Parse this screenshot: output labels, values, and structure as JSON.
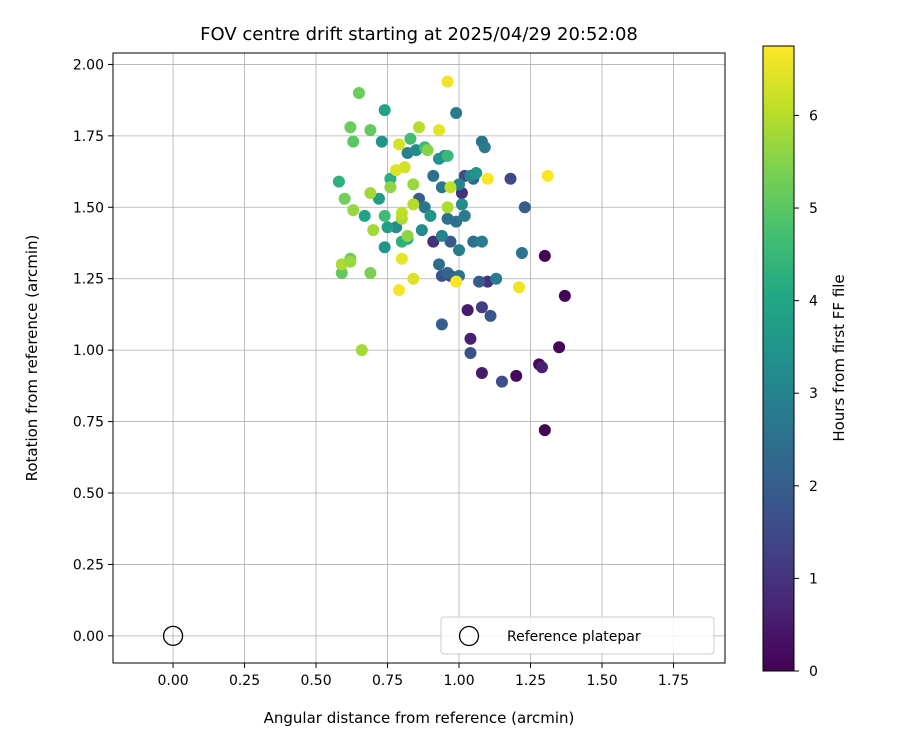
{
  "chart_data": {
    "type": "scatter",
    "title": "FOV centre drift starting at 2025/04/29 20:52:08",
    "xlabel": "Angular distance from reference (arcmin)",
    "ylabel": "Rotation from reference (arcmin)",
    "xlim": [
      -0.21,
      1.93
    ],
    "ylim": [
      -0.095,
      2.04
    ],
    "xticks": [
      "0.00",
      "0.25",
      "0.50",
      "0.75",
      "1.00",
      "1.25",
      "1.50",
      "1.75"
    ],
    "yticks": [
      "0.00",
      "0.25",
      "0.50",
      "0.75",
      "1.00",
      "1.25",
      "1.50",
      "1.75",
      "2.00"
    ],
    "grid": true,
    "colormap": "viridis",
    "colorbar": {
      "label": "Hours from first FF file",
      "range": [
        0,
        6.75
      ],
      "ticks": [
        "0",
        "1",
        "2",
        "3",
        "4",
        "5",
        "6"
      ]
    },
    "legend": {
      "position": "lower-right",
      "entries": [
        "Reference platepar"
      ]
    },
    "reference_point": {
      "x": 0.0,
      "y": 0.0
    },
    "series": [
      {
        "points": [
          [
            1.3,
            1.33,
            0.05
          ],
          [
            1.37,
            1.19,
            0.05
          ],
          [
            1.35,
            1.01,
            0.1
          ],
          [
            1.28,
            0.95,
            0.2
          ],
          [
            1.3,
            0.72,
            0.05
          ],
          [
            1.2,
            0.91,
            0.15
          ],
          [
            1.29,
            0.94,
            0.6
          ],
          [
            1.08,
            0.92,
            0.5
          ],
          [
            1.03,
            1.14,
            0.5
          ],
          [
            1.04,
            1.04,
            0.6
          ],
          [
            0.91,
            1.38,
            0.9
          ],
          [
            1.1,
            1.24,
            1.0
          ],
          [
            1.01,
            1.55,
            0.9
          ],
          [
            0.97,
            1.26,
            1.2
          ],
          [
            1.08,
            1.15,
            1.2
          ],
          [
            1.15,
            0.89,
            1.6
          ],
          [
            1.04,
            0.99,
            1.7
          ],
          [
            0.94,
            1.09,
            2.0
          ],
          [
            1.11,
            1.12,
            1.8
          ],
          [
            0.94,
            1.26,
            1.7
          ],
          [
            1.18,
            1.6,
            1.5
          ],
          [
            1.23,
            1.5,
            2.0
          ],
          [
            1.02,
            1.61,
            1.6
          ],
          [
            1.05,
            1.6,
            2.2
          ],
          [
            0.97,
            1.38,
            1.9
          ],
          [
            1.07,
            1.24,
            2.0
          ],
          [
            0.96,
            1.27,
            2.2
          ],
          [
            0.86,
            1.53,
            2.0
          ],
          [
            0.91,
            1.61,
            2.5
          ],
          [
            0.99,
            1.45,
            2.5
          ],
          [
            1.08,
            1.73,
            2.6
          ],
          [
            1.09,
            1.71,
            2.8
          ],
          [
            0.99,
            1.83,
            2.8
          ],
          [
            1.22,
            1.34,
            2.6
          ],
          [
            1.13,
            1.25,
            2.8
          ],
          [
            1.0,
            1.26,
            2.6
          ],
          [
            1.05,
            1.38,
            2.5
          ],
          [
            1.08,
            1.38,
            2.8
          ],
          [
            1.0,
            1.35,
            2.9
          ],
          [
            0.95,
            1.68,
            2.9
          ],
          [
            0.93,
            1.3,
            2.4
          ],
          [
            1.02,
            1.47,
            2.8
          ],
          [
            0.96,
            1.46,
            2.5
          ],
          [
            1.0,
            1.58,
            3.0
          ],
          [
            1.04,
            1.61,
            3.1
          ],
          [
            0.94,
            1.57,
            2.7
          ],
          [
            0.88,
            1.5,
            2.7
          ],
          [
            0.87,
            1.42,
            3.2
          ],
          [
            0.82,
            1.69,
            3.0
          ],
          [
            0.85,
            1.7,
            3.2
          ],
          [
            0.78,
            1.43,
            3.2
          ],
          [
            0.74,
            1.36,
            3.4
          ],
          [
            1.06,
            1.62,
            3.5
          ],
          [
            0.94,
            1.4,
            3.0
          ],
          [
            0.9,
            1.47,
            3.5
          ],
          [
            0.73,
            1.73,
            3.5
          ],
          [
            0.74,
            1.84,
            3.9
          ],
          [
            0.72,
            1.53,
            3.7
          ],
          [
            0.93,
            1.67,
            3.4
          ],
          [
            1.01,
            1.51,
            3.2
          ],
          [
            0.76,
            1.6,
            4.2
          ],
          [
            0.75,
            1.43,
            3.8
          ],
          [
            0.82,
            1.39,
            4.1
          ],
          [
            0.67,
            1.47,
            3.9
          ],
          [
            0.8,
            1.38,
            4.3
          ],
          [
            0.58,
            1.59,
            4.3
          ],
          [
            0.83,
            1.74,
            4.7
          ],
          [
            0.88,
            1.71,
            4.6
          ],
          [
            0.74,
            1.47,
            4.6
          ],
          [
            0.96,
            1.68,
            4.5
          ],
          [
            0.69,
            1.77,
            5.1
          ],
          [
            0.62,
            1.78,
            5.2
          ],
          [
            0.63,
            1.73,
            5.0
          ],
          [
            0.6,
            1.53,
            5.3
          ],
          [
            0.59,
            1.27,
            5.1
          ],
          [
            0.62,
            1.32,
            5.2
          ],
          [
            0.69,
            1.27,
            5.4
          ],
          [
            0.65,
            1.9,
            5.2
          ],
          [
            0.89,
            1.7,
            5.5
          ],
          [
            0.82,
            1.4,
            5.6
          ],
          [
            0.76,
            1.57,
            5.6
          ],
          [
            0.63,
            1.49,
            5.7
          ],
          [
            0.7,
            1.42,
            5.8
          ],
          [
            0.84,
            1.58,
            5.7
          ],
          [
            0.96,
            1.5,
            5.9
          ],
          [
            0.59,
            1.3,
            5.9
          ],
          [
            0.62,
            1.31,
            5.7
          ],
          [
            0.69,
            1.55,
            5.8
          ],
          [
            0.8,
            1.46,
            5.9
          ],
          [
            0.84,
            1.51,
            6.0
          ],
          [
            0.66,
            1.0,
            5.8
          ],
          [
            0.8,
            1.48,
            6.1
          ],
          [
            0.86,
            1.78,
            6.0
          ],
          [
            0.97,
            1.57,
            6.1
          ],
          [
            0.79,
            1.72,
            6.3
          ],
          [
            0.78,
            1.63,
            6.4
          ],
          [
            0.81,
            1.64,
            6.3
          ],
          [
            0.93,
            1.77,
            6.5
          ],
          [
            0.8,
            1.32,
            6.5
          ],
          [
            0.84,
            1.25,
            6.4
          ],
          [
            0.79,
            1.21,
            6.7
          ],
          [
            0.99,
            1.24,
            6.7
          ],
          [
            1.21,
            1.22,
            6.6
          ],
          [
            1.1,
            1.6,
            6.7
          ],
          [
            1.31,
            1.61,
            6.7
          ],
          [
            0.96,
            1.94,
            6.6
          ]
        ]
      }
    ]
  }
}
